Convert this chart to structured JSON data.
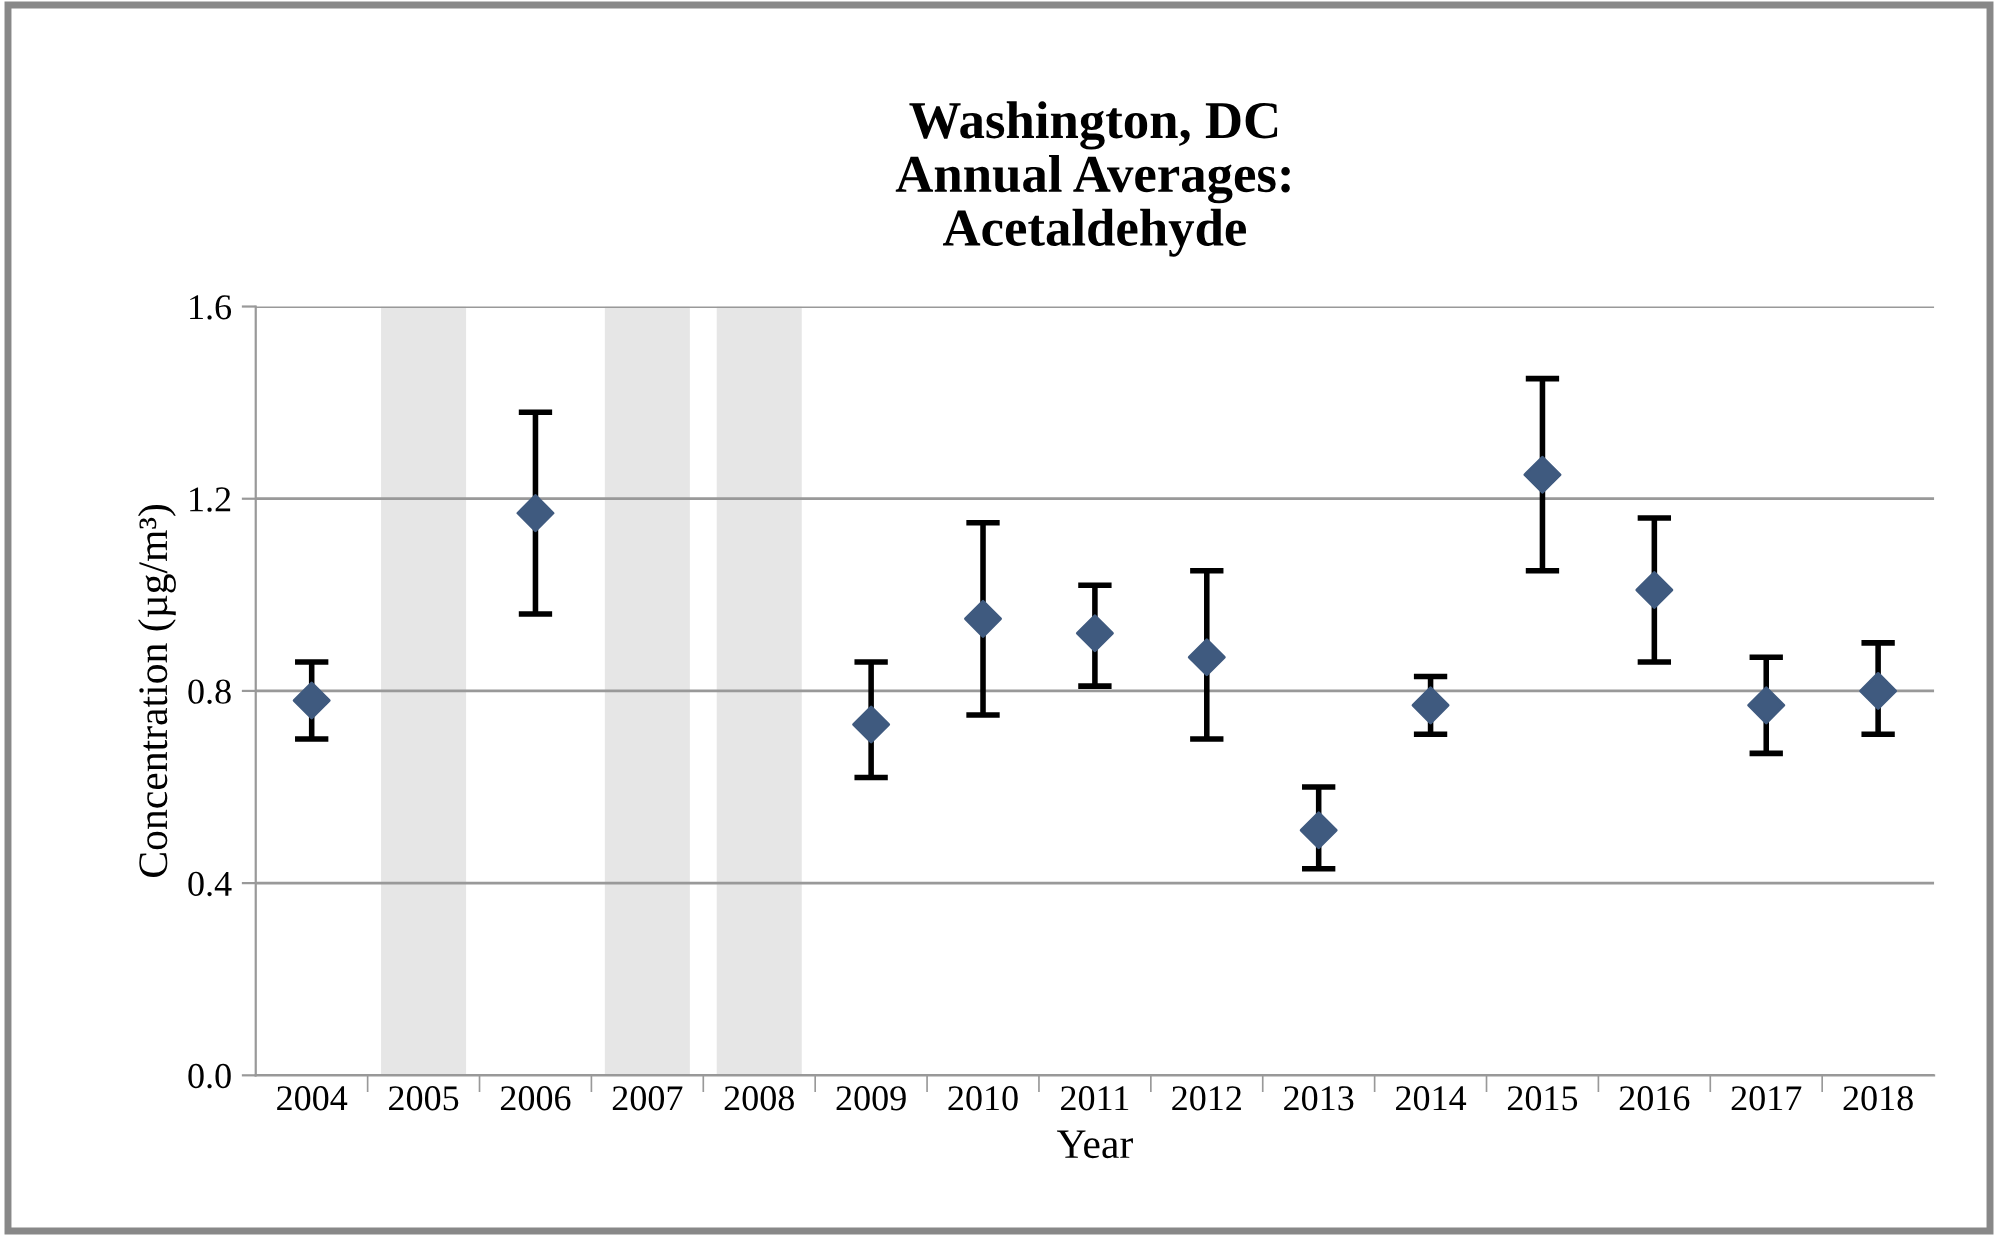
{
  "chart_data": {
    "type": "scatter",
    "title": "Washington, DC\nAnnual Averages:\nAcetaldehyde",
    "xlabel": "Year",
    "ylabel": "Concentration (µg/m³)",
    "categories": [
      "2004",
      "2005",
      "2006",
      "2007",
      "2008",
      "2009",
      "2010",
      "2011",
      "2012",
      "2013",
      "2014",
      "2015",
      "2016",
      "2017",
      "2018"
    ],
    "series": [
      {
        "color": "#3f5a7f",
        "values": [
          0.78,
          null,
          1.17,
          null,
          null,
          0.73,
          0.95,
          0.92,
          0.87,
          0.51,
          0.77,
          1.25,
          1.01,
          0.77,
          0.8
        ],
        "errors": [
          [
            0.7,
            0.86
          ],
          null,
          [
            0.96,
            1.38
          ],
          null,
          null,
          [
            0.62,
            0.86
          ],
          [
            0.75,
            1.15
          ],
          [
            0.81,
            1.02
          ],
          [
            0.7,
            1.05
          ],
          [
            0.43,
            0.6
          ],
          [
            0.71,
            0.83
          ],
          [
            1.05,
            1.45
          ],
          [
            0.86,
            1.16
          ],
          [
            0.67,
            0.87
          ],
          [
            0.71,
            0.9
          ]
        ]
      }
    ],
    "bands": [
      {
        "axis": "x",
        "from": "2005",
        "to": "2005",
        "color": "#e6e6e6"
      },
      {
        "axis": "x",
        "from": "2007",
        "to": "2007",
        "color": "#e6e6e6"
      },
      {
        "axis": "x",
        "from": "2008",
        "to": "2008",
        "color": "#e6e6e6"
      }
    ],
    "ylim": [
      0,
      1.6
    ],
    "yticks": [
      {
        "value": 0,
        "label": "0.0"
      },
      {
        "value": 0.4,
        "label": "0.4"
      },
      {
        "value": 0.8,
        "label": "0.8"
      },
      {
        "value": 1.2,
        "label": "1.2"
      },
      {
        "value": 1.6,
        "label": "1.6"
      }
    ],
    "grid": "y",
    "marker": "diamond"
  }
}
